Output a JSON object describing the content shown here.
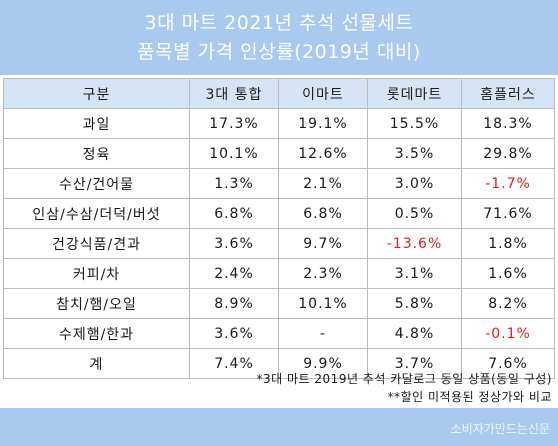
{
  "title": {
    "line1": "3대 마트 2021년 추석 선물세트",
    "line2": "품목별 가격 인상률(2019년 대비)"
  },
  "table": {
    "headers": [
      "구분",
      "3대 통합",
      "이마트",
      "롯데마트",
      "홈플러스"
    ],
    "rows": [
      {
        "category": "과일",
        "values": [
          "17.3%",
          "19.1%",
          "15.5%",
          "18.3%"
        ],
        "negative": [
          false,
          false,
          false,
          false
        ]
      },
      {
        "category": "정육",
        "values": [
          "10.1%",
          "12.6%",
          "3.5%",
          "29.8%"
        ],
        "negative": [
          false,
          false,
          false,
          false
        ]
      },
      {
        "category": "수산/건어물",
        "values": [
          "1.3%",
          "2.1%",
          "3.0%",
          "-1.7%"
        ],
        "negative": [
          false,
          false,
          false,
          true
        ]
      },
      {
        "category": "인삼/수삼/더덕/버섯",
        "values": [
          "6.8%",
          "6.8%",
          "0.5%",
          "71.6%"
        ],
        "negative": [
          false,
          false,
          false,
          false
        ]
      },
      {
        "category": "건강식품/견과",
        "values": [
          "3.6%",
          "9.7%",
          "-13.6%",
          "1.8%"
        ],
        "negative": [
          false,
          false,
          true,
          false
        ]
      },
      {
        "category": "커피/차",
        "values": [
          "2.4%",
          "2.3%",
          "3.1%",
          "1.6%"
        ],
        "negative": [
          false,
          false,
          false,
          false
        ]
      },
      {
        "category": "참치/햄/오일",
        "values": [
          "8.9%",
          "10.1%",
          "5.8%",
          "8.2%"
        ],
        "negative": [
          false,
          false,
          false,
          false
        ]
      },
      {
        "category": "수제햄/한과",
        "values": [
          "3.6%",
          "-",
          "4.8%",
          "-0.1%"
        ],
        "negative": [
          false,
          false,
          false,
          true
        ]
      },
      {
        "category": "계",
        "values": [
          "7.4%",
          "9.9%",
          "3.7%",
          "7.6%"
        ],
        "negative": [
          false,
          false,
          false,
          false
        ]
      }
    ]
  },
  "notes": [
    "*3대 마트 2019년 추석 카달로그 동일 상품(동일 구성)",
    "**할인 미적용된 정상가와 비교"
  ],
  "watermark": "소비자가만드는신문",
  "colors": {
    "title_bg": "#a9c9f0",
    "header_bg": "#d5e5f7",
    "negative": "#e02020"
  }
}
